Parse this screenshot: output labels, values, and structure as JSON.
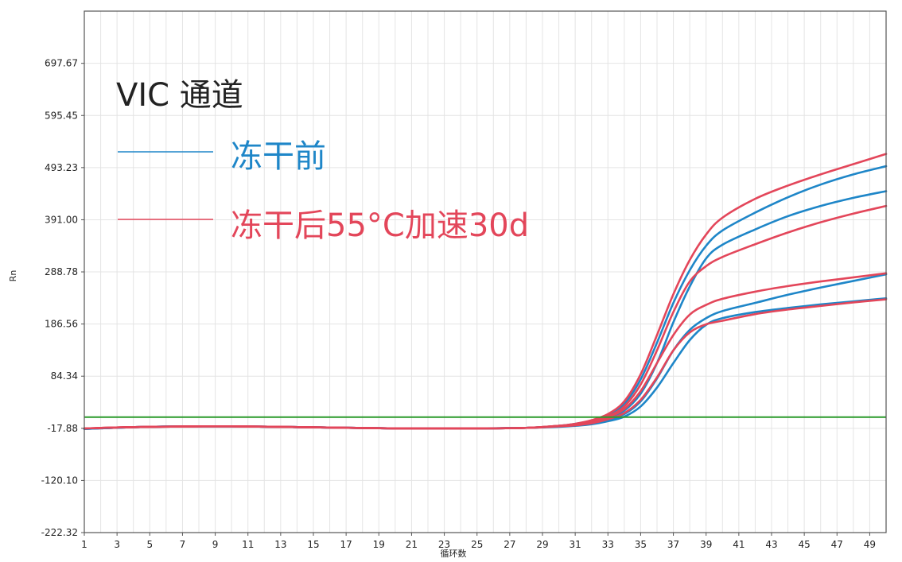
{
  "chart_data": {
    "type": "line",
    "title": "",
    "xlabel": "循环数",
    "ylabel": "Rn",
    "xlim": [
      1,
      50
    ],
    "ylim": [
      -222.32,
      800
    ],
    "grid": true,
    "x_ticks": [
      1,
      3,
      5,
      7,
      9,
      11,
      13,
      15,
      17,
      19,
      21,
      23,
      25,
      27,
      29,
      31,
      33,
      35,
      37,
      39,
      41,
      43,
      45,
      47,
      49
    ],
    "y_ticks": [
      "-222.32",
      "-120.10",
      "-17.88",
      "84.34",
      "186.56",
      "288.78",
      "391.00",
      "493.23",
      "595.45",
      "697.67"
    ],
    "threshold": {
      "value": 4,
      "color": "#2a9a2a"
    },
    "legend": {
      "placement": "top-left",
      "title": "VIC 通道",
      "entries": [
        {
          "label": "冻干前",
          "color": "#1e86c8"
        },
        {
          "label": "冻干后55°C加速30d",
          "color": "#e3465a"
        }
      ]
    },
    "series": [
      {
        "group": "冻干前",
        "color": "#1e86c8",
        "points": [
          [
            1,
            -19
          ],
          [
            5,
            -15
          ],
          [
            10,
            -14
          ],
          [
            15,
            -16
          ],
          [
            20,
            -18
          ],
          [
            25,
            -18
          ],
          [
            28,
            -17
          ],
          [
            30,
            -14
          ],
          [
            31,
            -11
          ],
          [
            32,
            -6
          ],
          [
            33,
            2
          ],
          [
            34,
            17
          ],
          [
            35,
            50
          ],
          [
            36,
            110
          ],
          [
            37,
            190
          ],
          [
            38,
            260
          ],
          [
            39,
            315
          ],
          [
            40,
            342
          ],
          [
            42,
            372
          ],
          [
            44,
            398
          ],
          [
            46,
            418
          ],
          [
            48,
            434
          ],
          [
            50,
            447
          ]
        ]
      },
      {
        "group": "冻干前",
        "color": "#1e86c8",
        "points": [
          [
            1,
            -19
          ],
          [
            5,
            -15
          ],
          [
            10,
            -14
          ],
          [
            15,
            -16
          ],
          [
            20,
            -18
          ],
          [
            25,
            -18
          ],
          [
            28,
            -17
          ],
          [
            30,
            -13
          ],
          [
            31,
            -9
          ],
          [
            32,
            -3
          ],
          [
            33,
            8
          ],
          [
            34,
            30
          ],
          [
            35,
            78
          ],
          [
            36,
            150
          ],
          [
            37,
            228
          ],
          [
            38,
            292
          ],
          [
            39,
            340
          ],
          [
            40,
            370
          ],
          [
            42,
            405
          ],
          [
            44,
            435
          ],
          [
            46,
            460
          ],
          [
            48,
            480
          ],
          [
            50,
            496
          ]
        ]
      },
      {
        "group": "冻干前",
        "color": "#1e86c8",
        "points": [
          [
            1,
            -19
          ],
          [
            5,
            -15
          ],
          [
            10,
            -14
          ],
          [
            15,
            -16
          ],
          [
            20,
            -18
          ],
          [
            25,
            -18
          ],
          [
            28,
            -17
          ],
          [
            30,
            -14
          ],
          [
            31,
            -11
          ],
          [
            32,
            -7
          ],
          [
            33,
            -1
          ],
          [
            34,
            10
          ],
          [
            35,
            35
          ],
          [
            36,
            80
          ],
          [
            37,
            135
          ],
          [
            38,
            175
          ],
          [
            39,
            198
          ],
          [
            40,
            212
          ],
          [
            42,
            228
          ],
          [
            44,
            244
          ],
          [
            46,
            258
          ],
          [
            48,
            271
          ],
          [
            50,
            284
          ]
        ]
      },
      {
        "group": "冻干前",
        "color": "#1e86c8",
        "points": [
          [
            1,
            -19
          ],
          [
            5,
            -15
          ],
          [
            10,
            -14
          ],
          [
            15,
            -16
          ],
          [
            20,
            -18
          ],
          [
            25,
            -18
          ],
          [
            28,
            -17
          ],
          [
            30,
            -15
          ],
          [
            31,
            -13
          ],
          [
            32,
            -10
          ],
          [
            33,
            -4
          ],
          [
            34,
            5
          ],
          [
            35,
            25
          ],
          [
            36,
            62
          ],
          [
            37,
            110
          ],
          [
            38,
            155
          ],
          [
            39,
            185
          ],
          [
            40,
            198
          ],
          [
            42,
            210
          ],
          [
            44,
            218
          ],
          [
            46,
            225
          ],
          [
            48,
            231
          ],
          [
            50,
            237
          ]
        ]
      },
      {
        "group": "冻干后55°C加速30d",
        "color": "#e3465a",
        "points": [
          [
            1,
            -18
          ],
          [
            5,
            -15
          ],
          [
            10,
            -14
          ],
          [
            15,
            -16
          ],
          [
            20,
            -18
          ],
          [
            25,
            -18
          ],
          [
            28,
            -17
          ],
          [
            30,
            -13
          ],
          [
            31,
            -9
          ],
          [
            32,
            -2
          ],
          [
            33,
            10
          ],
          [
            34,
            35
          ],
          [
            35,
            88
          ],
          [
            36,
            165
          ],
          [
            37,
            245
          ],
          [
            38,
            312
          ],
          [
            39,
            362
          ],
          [
            40,
            395
          ],
          [
            42,
            432
          ],
          [
            44,
            458
          ],
          [
            46,
            480
          ],
          [
            48,
            500
          ],
          [
            50,
            520
          ]
        ]
      },
      {
        "group": "冻干后55°C加速30d",
        "color": "#e3465a",
        "points": [
          [
            1,
            -18
          ],
          [
            5,
            -15
          ],
          [
            10,
            -14
          ],
          [
            15,
            -16
          ],
          [
            20,
            -18
          ],
          [
            25,
            -18
          ],
          [
            28,
            -17
          ],
          [
            30,
            -13
          ],
          [
            31,
            -10
          ],
          [
            32,
            -4
          ],
          [
            33,
            6
          ],
          [
            34,
            25
          ],
          [
            35,
            68
          ],
          [
            36,
            135
          ],
          [
            37,
            210
          ],
          [
            38,
            270
          ],
          [
            39,
            300
          ],
          [
            40,
            318
          ],
          [
            42,
            343
          ],
          [
            44,
            366
          ],
          [
            46,
            386
          ],
          [
            48,
            403
          ],
          [
            50,
            418
          ]
        ]
      },
      {
        "group": "冻干后55°C加速30d",
        "color": "#e3465a",
        "points": [
          [
            1,
            -18
          ],
          [
            5,
            -15
          ],
          [
            10,
            -14
          ],
          [
            15,
            -16
          ],
          [
            20,
            -18
          ],
          [
            25,
            -18
          ],
          [
            28,
            -17
          ],
          [
            30,
            -13
          ],
          [
            31,
            -10
          ],
          [
            32,
            -5
          ],
          [
            33,
            4
          ],
          [
            34,
            20
          ],
          [
            35,
            55
          ],
          [
            36,
            110
          ],
          [
            37,
            165
          ],
          [
            38,
            205
          ],
          [
            39,
            224
          ],
          [
            40,
            236
          ],
          [
            42,
            250
          ],
          [
            44,
            261
          ],
          [
            46,
            270
          ],
          [
            48,
            278
          ],
          [
            50,
            286
          ]
        ]
      },
      {
        "group": "冻干后55°C加速30d",
        "color": "#e3465a",
        "points": [
          [
            1,
            -18
          ],
          [
            5,
            -15
          ],
          [
            10,
            -14
          ],
          [
            15,
            -16
          ],
          [
            20,
            -18
          ],
          [
            25,
            -18
          ],
          [
            28,
            -17
          ],
          [
            30,
            -14
          ],
          [
            31,
            -12
          ],
          [
            32,
            -8
          ],
          [
            33,
            0
          ],
          [
            34,
            12
          ],
          [
            35,
            38
          ],
          [
            36,
            82
          ],
          [
            37,
            135
          ],
          [
            38,
            170
          ],
          [
            39,
            186
          ],
          [
            40,
            193
          ],
          [
            42,
            206
          ],
          [
            44,
            215
          ],
          [
            46,
            222
          ],
          [
            48,
            229
          ],
          [
            50,
            235
          ]
        ]
      }
    ]
  }
}
